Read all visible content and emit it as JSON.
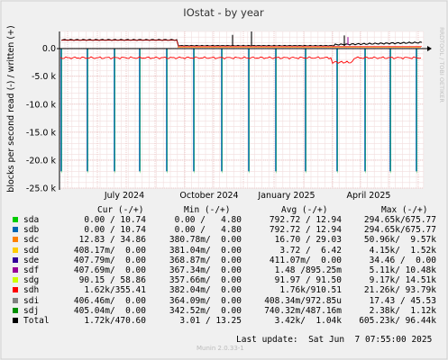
{
  "chart_data": {
    "type": "line",
    "title": "IOstat - by year",
    "ylabel": "blocks per second read (-) / written (+)",
    "side_label": "RRDTOOL / TOBI OETIKER",
    "ylim": [
      -25000,
      3000
    ],
    "yticks": [
      {
        "value": 0,
        "label": "0.0"
      },
      {
        "value": -5000,
        "label": "-5.0 k"
      },
      {
        "value": -10000,
        "label": "-10.0 k"
      },
      {
        "value": -15000,
        "label": "-15.0 k"
      },
      {
        "value": -20000,
        "label": "-20.0 k"
      },
      {
        "value": -25000,
        "label": "-25.0 k"
      }
    ],
    "xticks": [
      "July 2024",
      "October 2024",
      "January 2025",
      "April 2025"
    ],
    "series": [
      {
        "name": "sda",
        "color": "#00cc00"
      },
      {
        "name": "sdb",
        "color": "#0066b3"
      },
      {
        "name": "sdc",
        "color": "#ff8000"
      },
      {
        "name": "sdd",
        "color": "#ffcc00"
      },
      {
        "name": "sde",
        "color": "#330099"
      },
      {
        "name": "sdf",
        "color": "#990099"
      },
      {
        "name": "sdg",
        "color": "#ccff00"
      },
      {
        "name": "sdh",
        "color": "#ff0000"
      },
      {
        "name": "sdi",
        "color": "#808080"
      },
      {
        "name": "sdj",
        "color": "#008f00"
      },
      {
        "name": "Total",
        "color": "#000000"
      }
    ],
    "read_spike_value": -22000,
    "write_level": 1500,
    "read_level": -1700
  },
  "legend": {
    "headers": {
      "cur": "Cur (-/+)",
      "min": "Min (-/+)",
      "avg": "Avg (-/+)",
      "max": "Max (-/+)"
    },
    "rows": [
      {
        "name": "sda",
        "color": "#00cc00",
        "cur": "0.00 / 10.74",
        "min": "0.00 /   4.80",
        "avg": "792.72 / 12.94",
        "max": "294.65k/675.77"
      },
      {
        "name": "sdb",
        "color": "#0066b3",
        "cur": "0.00 / 10.74",
        "min": "0.00 /   4.80",
        "avg": "792.72 / 12.94",
        "max": "294.65k/675.77"
      },
      {
        "name": "sdc",
        "color": "#ff8000",
        "cur": "12.83 / 34.86",
        "min": "380.78m/  0.00",
        "avg": "16.70 / 29.03",
        "max": "50.96k/  9.57k"
      },
      {
        "name": "sdd",
        "color": "#ffcc00",
        "cur": "408.17m/  0.00",
        "min": "381.04m/  0.00",
        "avg": "3.72 /  6.42",
        "max": "4.15k/  1.52k"
      },
      {
        "name": "sde",
        "color": "#330099",
        "cur": "407.79m/  0.00",
        "min": "368.87m/  0.00",
        "avg": "411.07m/  0.00",
        "max": "34.46 /  0.00"
      },
      {
        "name": "sdf",
        "color": "#990099",
        "cur": "407.69m/  0.00",
        "min": "367.34m/  0.00",
        "avg": "1.48 /895.25m",
        "max": "5.11k/ 10.48k"
      },
      {
        "name": "sdg",
        "color": "#ccff00",
        "cur": "90.15 / 58.86",
        "min": "357.66m/  0.00",
        "avg": "91.97 / 91.50",
        "max": "9.17k/ 14.51k"
      },
      {
        "name": "sdh",
        "color": "#ff0000",
        "cur": "1.62k/355.41",
        "min": "382.04m/  0.00",
        "avg": "1.76k/910.51",
        "max": "21.26k/ 93.79k"
      },
      {
        "name": "sdi",
        "color": "#808080",
        "cur": "406.46m/  0.00",
        "min": "364.09m/  0.00",
        "avg": "408.34m/972.85u",
        "max": "17.43 / 45.53"
      },
      {
        "name": "sdj",
        "color": "#008f00",
        "cur": "405.04m/  0.00",
        "min": "342.52m/  0.00",
        "avg": "740.32m/487.16m",
        "max": "2.38k/  1.12k"
      },
      {
        "name": "Total",
        "color": "#000000",
        "cur": "1.72k/470.60",
        "min": "3.01 / 13.25",
        "avg": "3.42k/  1.04k",
        "max": "605.23k/ 96.44k"
      }
    ]
  },
  "footer": {
    "last_update": "Last update:  Sat Jun  7 07:55:00 2025",
    "munin": "Munin 2.0.33-1"
  }
}
